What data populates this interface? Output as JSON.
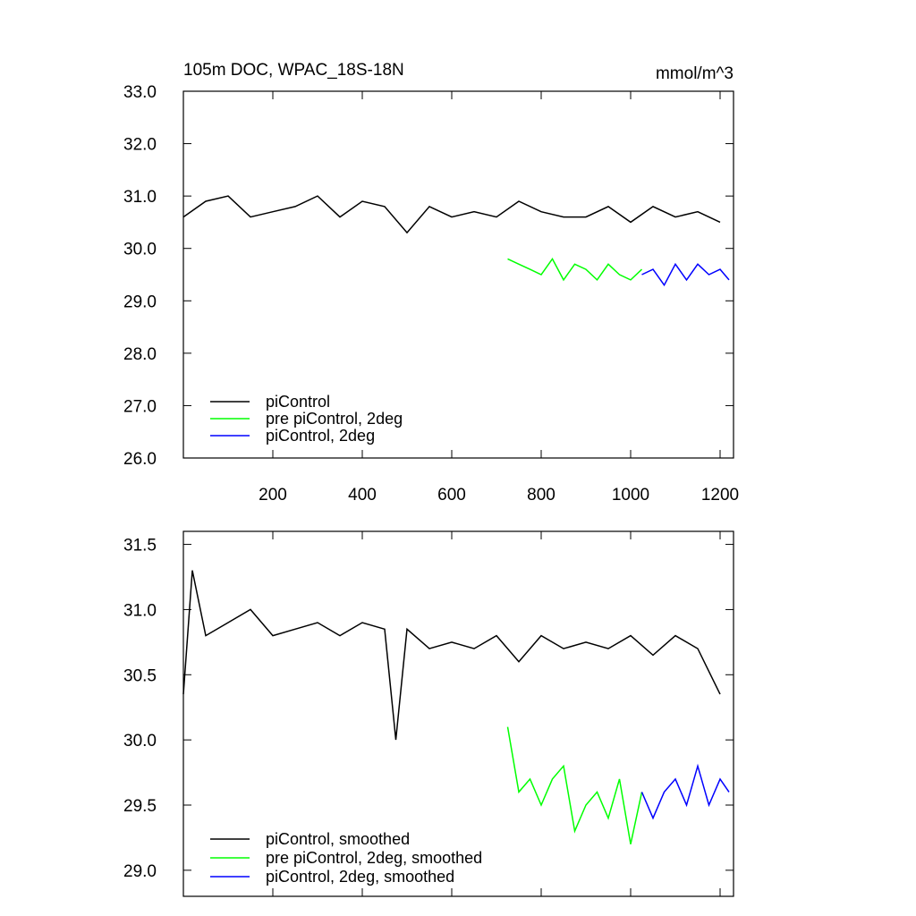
{
  "chart_data": [
    {
      "type": "line",
      "title": "105m DOC, WPAC_18S-18N",
      "units": "mmol/m^3",
      "xlim": [
        0,
        1230
      ],
      "ylim": [
        26.0,
        33.0
      ],
      "x_ticks": [
        200,
        400,
        600,
        800,
        1000,
        1200
      ],
      "x_tick_labels": [
        "200",
        "400",
        "600",
        "800",
        "1000",
        "1200"
      ],
      "y_ticks": [
        26.0,
        27.0,
        28.0,
        29.0,
        30.0,
        31.0,
        32.0,
        33.0
      ],
      "y_tick_labels": [
        "26.0",
        "27.0",
        "28.0",
        "29.0",
        "30.0",
        "31.0",
        "32.0",
        "33.0"
      ],
      "legend_position": "bottom-left",
      "series": [
        {
          "name": "piControl",
          "color": "#000000",
          "x": [
            0,
            50,
            100,
            150,
            200,
            250,
            300,
            350,
            400,
            450,
            500,
            550,
            600,
            650,
            700,
            750,
            800,
            850,
            900,
            950,
            1000,
            1050,
            1100,
            1150,
            1200
          ],
          "y": [
            30.6,
            30.9,
            31.0,
            30.6,
            30.7,
            30.8,
            31.0,
            30.6,
            30.9,
            30.8,
            30.3,
            30.8,
            30.6,
            30.7,
            30.6,
            30.9,
            30.7,
            30.6,
            30.6,
            30.8,
            30.5,
            30.8,
            30.6,
            30.7,
            30.5
          ]
        },
        {
          "name": "pre piControl, 2deg",
          "color": "#00ff00",
          "x": [
            725,
            750,
            775,
            800,
            825,
            850,
            875,
            900,
            925,
            950,
            975,
            1000,
            1025
          ],
          "y": [
            29.8,
            29.7,
            29.6,
            29.5,
            29.8,
            29.4,
            29.7,
            29.6,
            29.4,
            29.7,
            29.5,
            29.4,
            29.6
          ]
        },
        {
          "name": "piControl, 2deg",
          "color": "#0000ff",
          "x": [
            1025,
            1050,
            1075,
            1100,
            1125,
            1150,
            1175,
            1200,
            1220
          ],
          "y": [
            29.5,
            29.6,
            29.3,
            29.7,
            29.4,
            29.7,
            29.5,
            29.6,
            29.4
          ]
        }
      ]
    },
    {
      "type": "line",
      "xlim": [
        0,
        1230
      ],
      "ylim": [
        28.8,
        31.6
      ],
      "y_ticks": [
        29.0,
        29.5,
        30.0,
        30.5,
        31.0,
        31.5
      ],
      "y_tick_labels": [
        "29.0",
        "29.5",
        "30.0",
        "30.5",
        "31.0",
        "31.5"
      ],
      "legend_position": "bottom-left",
      "series": [
        {
          "name": "piControl, smoothed",
          "color": "#000000",
          "x": [
            0,
            20,
            50,
            100,
            150,
            200,
            250,
            300,
            350,
            400,
            450,
            475,
            500,
            550,
            600,
            650,
            700,
            750,
            800,
            850,
            900,
            950,
            1000,
            1050,
            1100,
            1150,
            1200
          ],
          "y": [
            30.35,
            31.3,
            30.8,
            30.9,
            31.0,
            30.8,
            30.85,
            30.9,
            30.8,
            30.9,
            30.85,
            30.0,
            30.85,
            30.7,
            30.75,
            30.7,
            30.8,
            30.6,
            30.8,
            30.7,
            30.75,
            30.7,
            30.8,
            30.65,
            30.8,
            30.7,
            30.35
          ]
        },
        {
          "name": "pre piControl, 2deg, smoothed",
          "color": "#00ff00",
          "x": [
            725,
            750,
            775,
            800,
            825,
            850,
            875,
            900,
            925,
            950,
            975,
            1000,
            1025
          ],
          "y": [
            30.1,
            29.6,
            29.7,
            29.5,
            29.7,
            29.8,
            29.3,
            29.5,
            29.6,
            29.4,
            29.7,
            29.2,
            29.6
          ]
        },
        {
          "name": "piControl, 2deg, smoothed",
          "color": "#0000ff",
          "x": [
            1025,
            1050,
            1075,
            1100,
            1125,
            1150,
            1175,
            1200,
            1220
          ],
          "y": [
            29.6,
            29.4,
            29.6,
            29.7,
            29.5,
            29.8,
            29.5,
            29.7,
            29.6
          ]
        }
      ]
    }
  ]
}
